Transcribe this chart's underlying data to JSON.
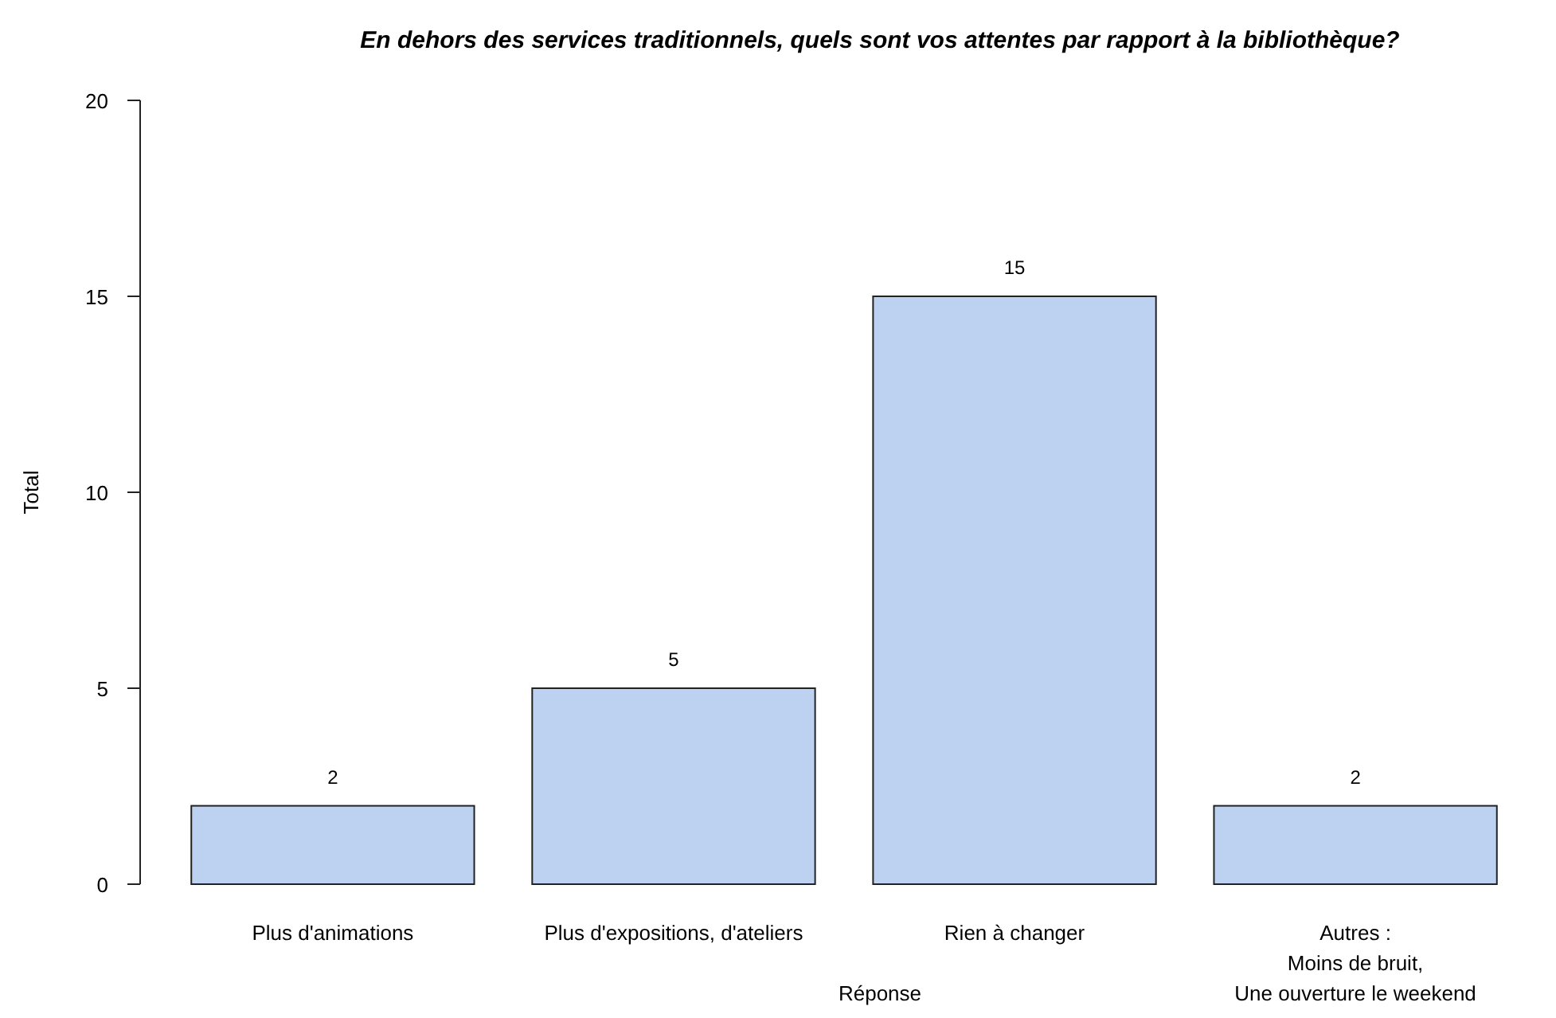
{
  "chart_data": {
    "type": "bar",
    "title": "En dehors des services traditionnels, quels sont vos attentes par rapport à la bibliothèque?",
    "xlabel": "Réponse",
    "ylabel": "Total",
    "categories": [
      "Plus d'animations",
      "Plus d'expositions, d'ateliers",
      "Rien à changer",
      "Autres :\nMoins de bruit,\nUne ouverture le weekend"
    ],
    "values": [
      2,
      5,
      15,
      2
    ],
    "color": "#bcd2f0",
    "ylim": [
      0,
      20
    ],
    "yticks": [
      0,
      5,
      10,
      15,
      20
    ],
    "data_labels": true
  }
}
